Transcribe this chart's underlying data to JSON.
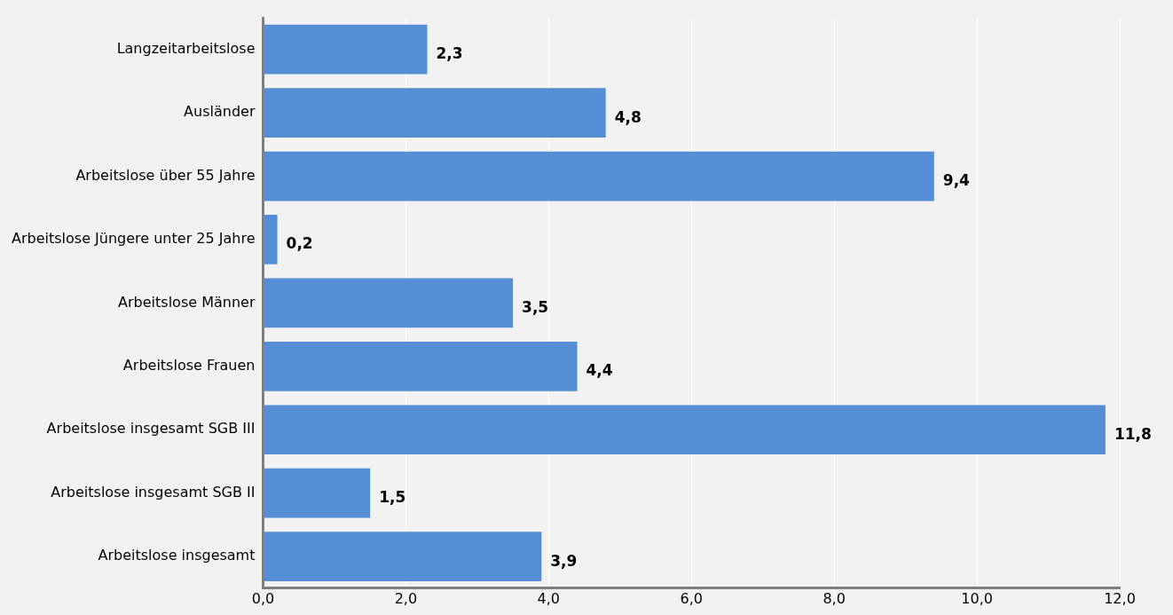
{
  "chart_data": {
    "type": "bar",
    "orientation": "horizontal",
    "categories": [
      "Langzeitarbeitslose",
      "Ausländer",
      "Arbeitslose über 55 Jahre",
      "Arbeitslose Jüngere unter 25 Jahre",
      "Arbeitslose Männer",
      "Arbeitslose Frauen",
      "Arbeitslose insgesamt SGB III",
      "Arbeitslose insgesamt SGB II",
      "Arbeitslose insgesamt"
    ],
    "values": [
      2.3,
      4.8,
      9.4,
      0.2,
      3.5,
      4.4,
      11.8,
      1.5,
      3.9
    ],
    "value_labels": [
      "2,3",
      "4,8",
      "9,4",
      "0,2",
      "3,5",
      "4,4",
      "11,8",
      "1,5",
      "3,9"
    ],
    "color": "#558ed5",
    "xlim": [
      0,
      12
    ],
    "xticks": [
      {
        "value": 0,
        "label": "0,0"
      },
      {
        "value": 2,
        "label": "2,0"
      },
      {
        "value": 4,
        "label": "4,0"
      },
      {
        "value": 6,
        "label": "6,0"
      },
      {
        "value": 8,
        "label": "8,0"
      },
      {
        "value": 10,
        "label": "10,0"
      },
      {
        "value": 12,
        "label": "12,0"
      }
    ],
    "grid": "x",
    "legend": false
  }
}
